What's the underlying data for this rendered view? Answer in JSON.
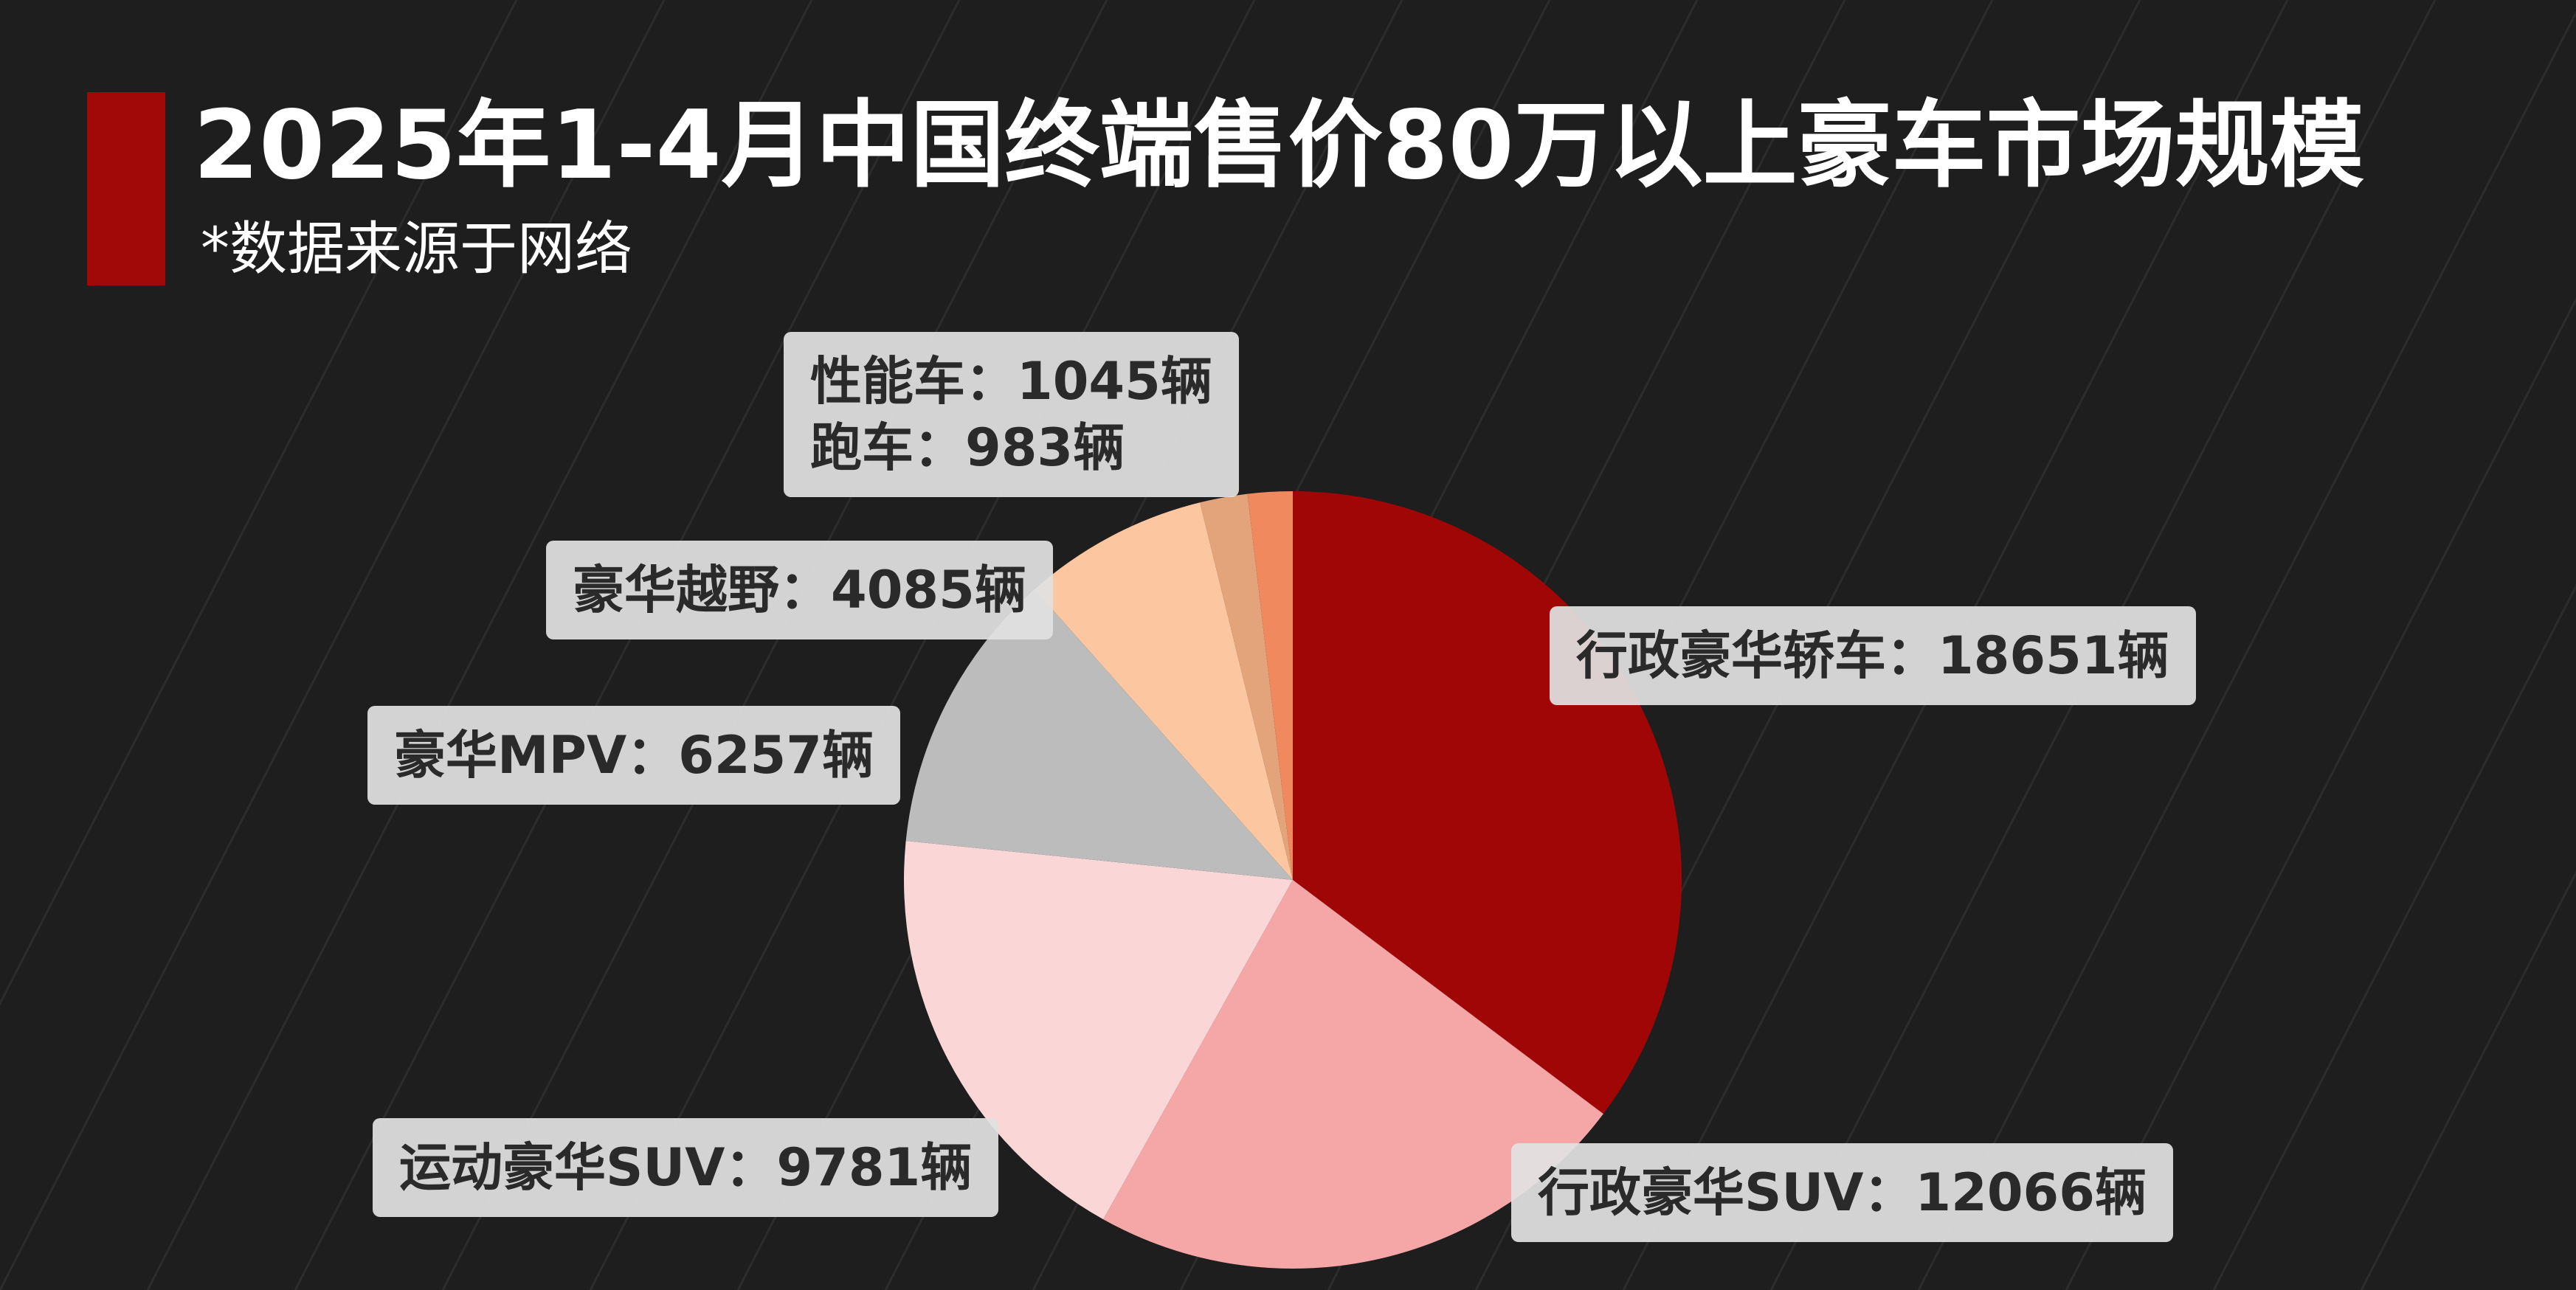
{
  "title": "2025年1-4月中国终端售价80万以上豪车市场规模",
  "subtitle": "*数据来源于网络",
  "colors": {
    "background": "#1e1e1e",
    "accent": "#a10808"
  },
  "chart_data": {
    "type": "pie",
    "unit": "辆",
    "slices": [
      {
        "name": "行政豪华轿车",
        "value": 18651,
        "label": "行政豪华轿车：18651辆",
        "color": "#a10606"
      },
      {
        "name": "行政豪华SUV",
        "value": 12066,
        "label": "行政豪华SUV：12066辆",
        "color": "#f5a6a7"
      },
      {
        "name": "运动豪华SUV",
        "value": 9781,
        "label": "运动豪华SUV：9781辆",
        "color": "#fad6d6"
      },
      {
        "name": "豪华MPV",
        "value": 6257,
        "label": "豪华MPV：6257辆",
        "color": "#bcbcbc"
      },
      {
        "name": "豪华越野",
        "value": 4085,
        "label": "豪华越野：4085辆",
        "color": "#fcc7a0"
      },
      {
        "name": "性能车",
        "value": 1045,
        "label": "性能车：1045辆",
        "color": "#e3a47c"
      },
      {
        "name": "跑车",
        "value": 983,
        "label": "跑车：983辆",
        "color": "#f08a5e"
      }
    ]
  }
}
